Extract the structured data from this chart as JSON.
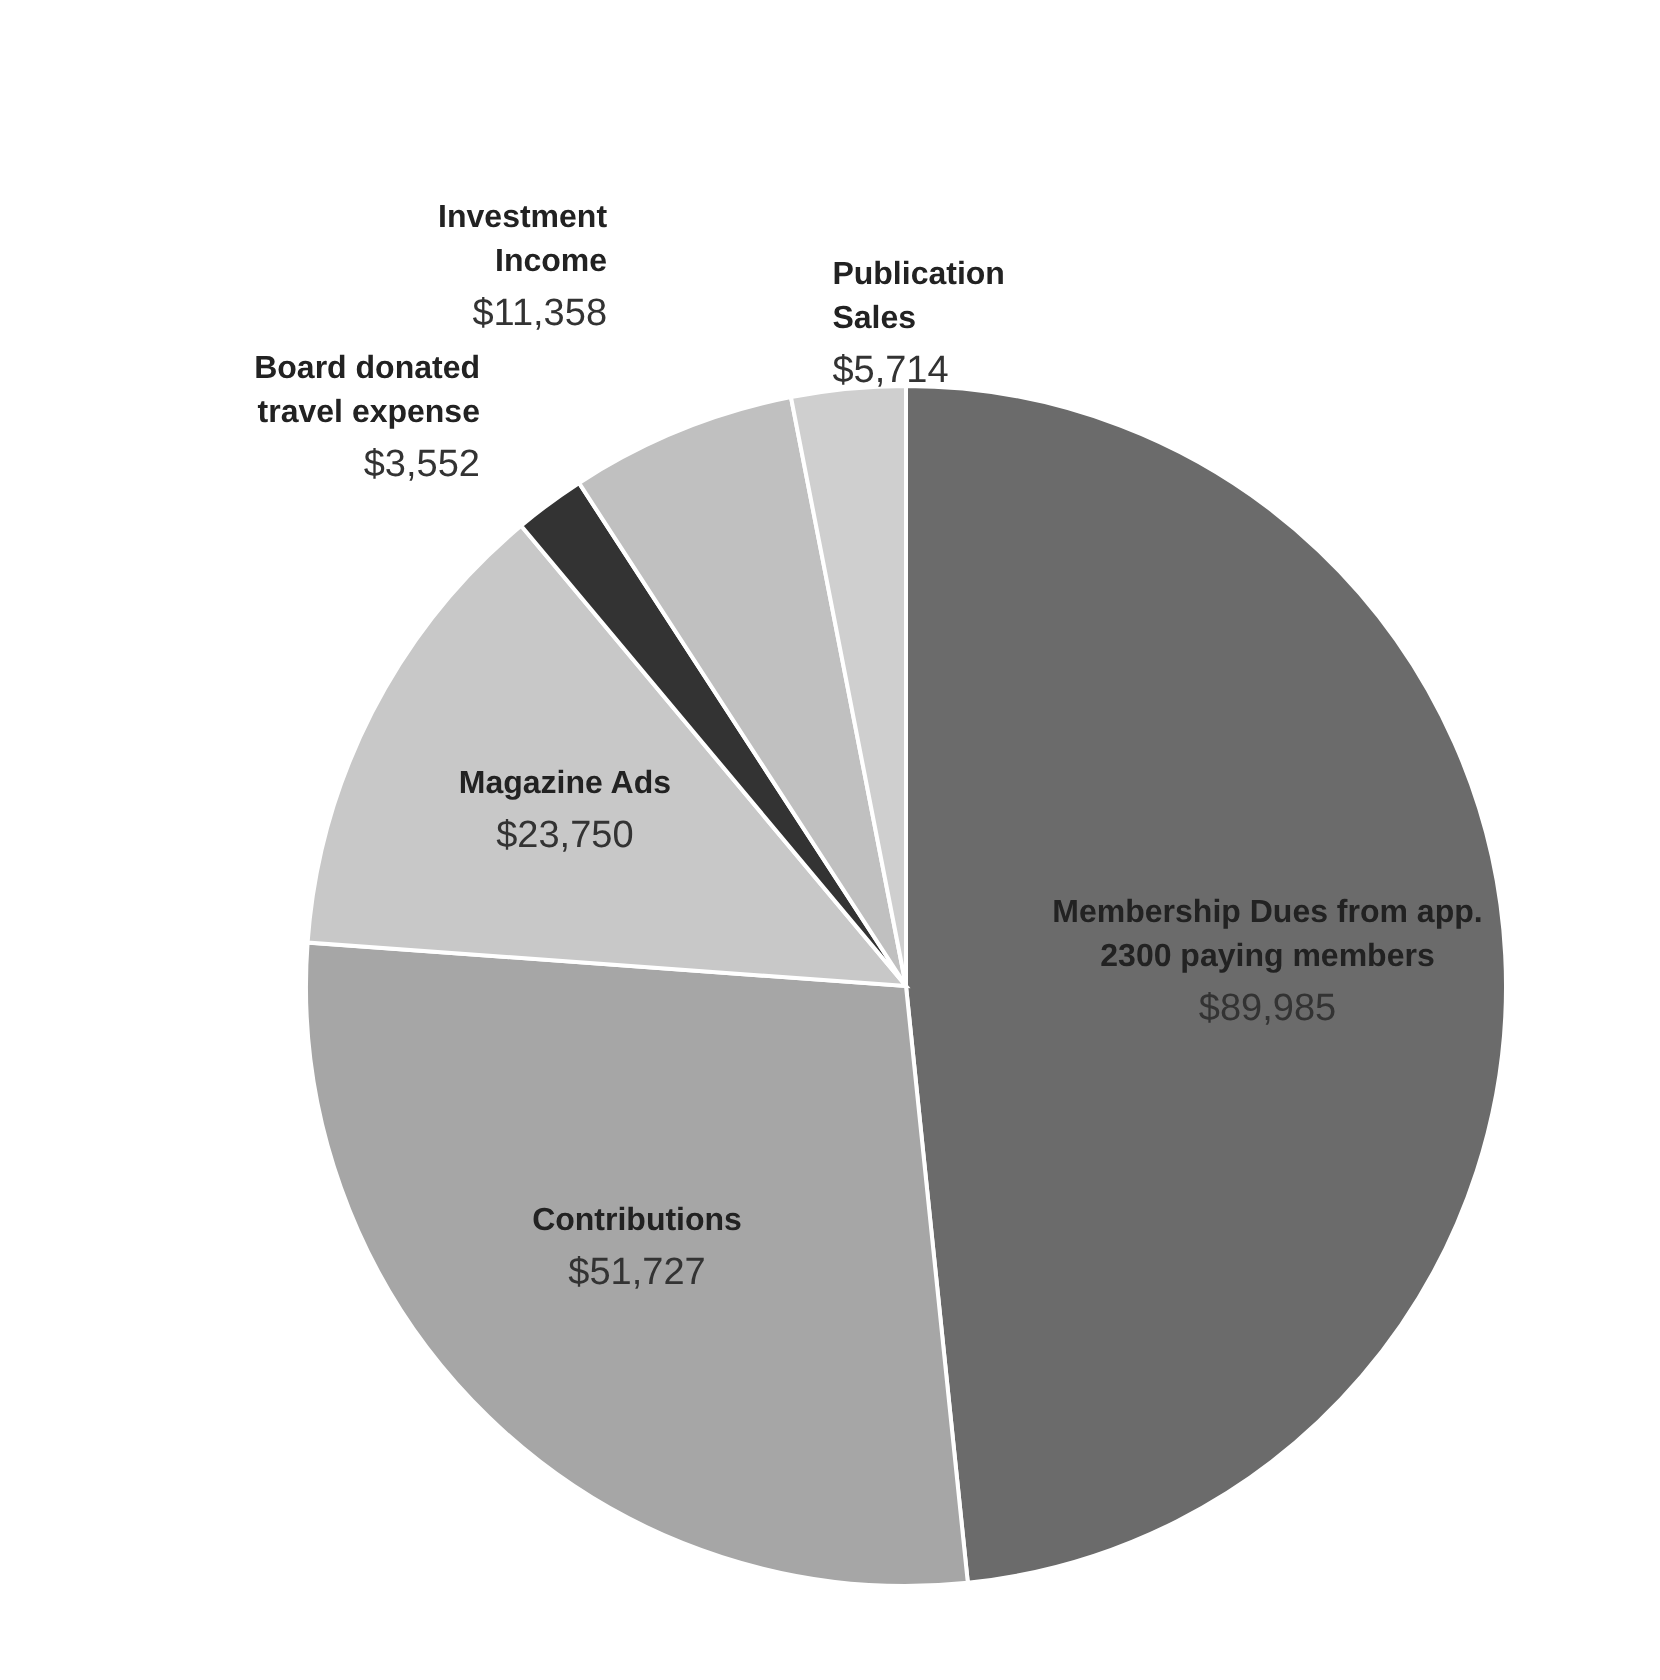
{
  "chart_data": {
    "type": "pie",
    "categories": [
      "Membership Dues from app. 2300 paying members",
      "Contributions",
      "Magazine Ads",
      "Board donated travel expense",
      "Investment Income",
      "Publication Sales"
    ],
    "values": [
      89985,
      51727,
      23750,
      3552,
      11358,
      5714
    ],
    "value_labels": [
      "$89,985",
      "$51,727",
      "$23,750",
      "$3,552",
      "$11,358",
      "$5,714"
    ],
    "colors": [
      "#6b6b6b",
      "#a6a6a6",
      "#c8c8c8",
      "#333333",
      "#c0c0c0",
      "#cfcfcf"
    ],
    "legend": false
  }
}
